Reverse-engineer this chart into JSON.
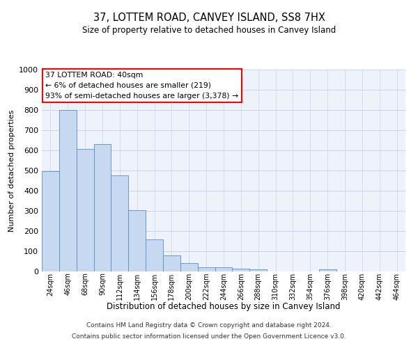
{
  "title": "37, LOTTEM ROAD, CANVEY ISLAND, SS8 7HX",
  "subtitle": "Size of property relative to detached houses in Canvey Island",
  "xlabel": "Distribution of detached houses by size in Canvey Island",
  "ylabel": "Number of detached properties",
  "bar_color": "#c6d9f0",
  "bar_edge_color": "#5b8cc8",
  "categories": [
    "24sqm",
    "46sqm",
    "68sqm",
    "90sqm",
    "112sqm",
    "134sqm",
    "156sqm",
    "178sqm",
    "200sqm",
    "222sqm",
    "244sqm",
    "266sqm",
    "288sqm",
    "310sqm",
    "332sqm",
    "354sqm",
    "376sqm",
    "398sqm",
    "420sqm",
    "442sqm",
    "464sqm"
  ],
  "values": [
    495,
    800,
    608,
    630,
    475,
    302,
    160,
    78,
    42,
    20,
    20,
    14,
    10,
    0,
    0,
    0,
    10,
    0,
    0,
    0,
    0
  ],
  "ylim": [
    0,
    1000
  ],
  "yticks": [
    0,
    100,
    200,
    300,
    400,
    500,
    600,
    700,
    800,
    900,
    1000
  ],
  "annotation_box_text": "37 LOTTEM ROAD: 40sqm\n← 6% of detached houses are smaller (219)\n93% of semi-detached houses are larger (3,378) →",
  "annotation_box_color": "white",
  "annotation_box_edge_color": "red",
  "footer_line1": "Contains HM Land Registry data © Crown copyright and database right 2024.",
  "footer_line2": "Contains public sector information licensed under the Open Government Licence v3.0.",
  "grid_color": "#c8d4e8",
  "background_color": "#eef2fa"
}
